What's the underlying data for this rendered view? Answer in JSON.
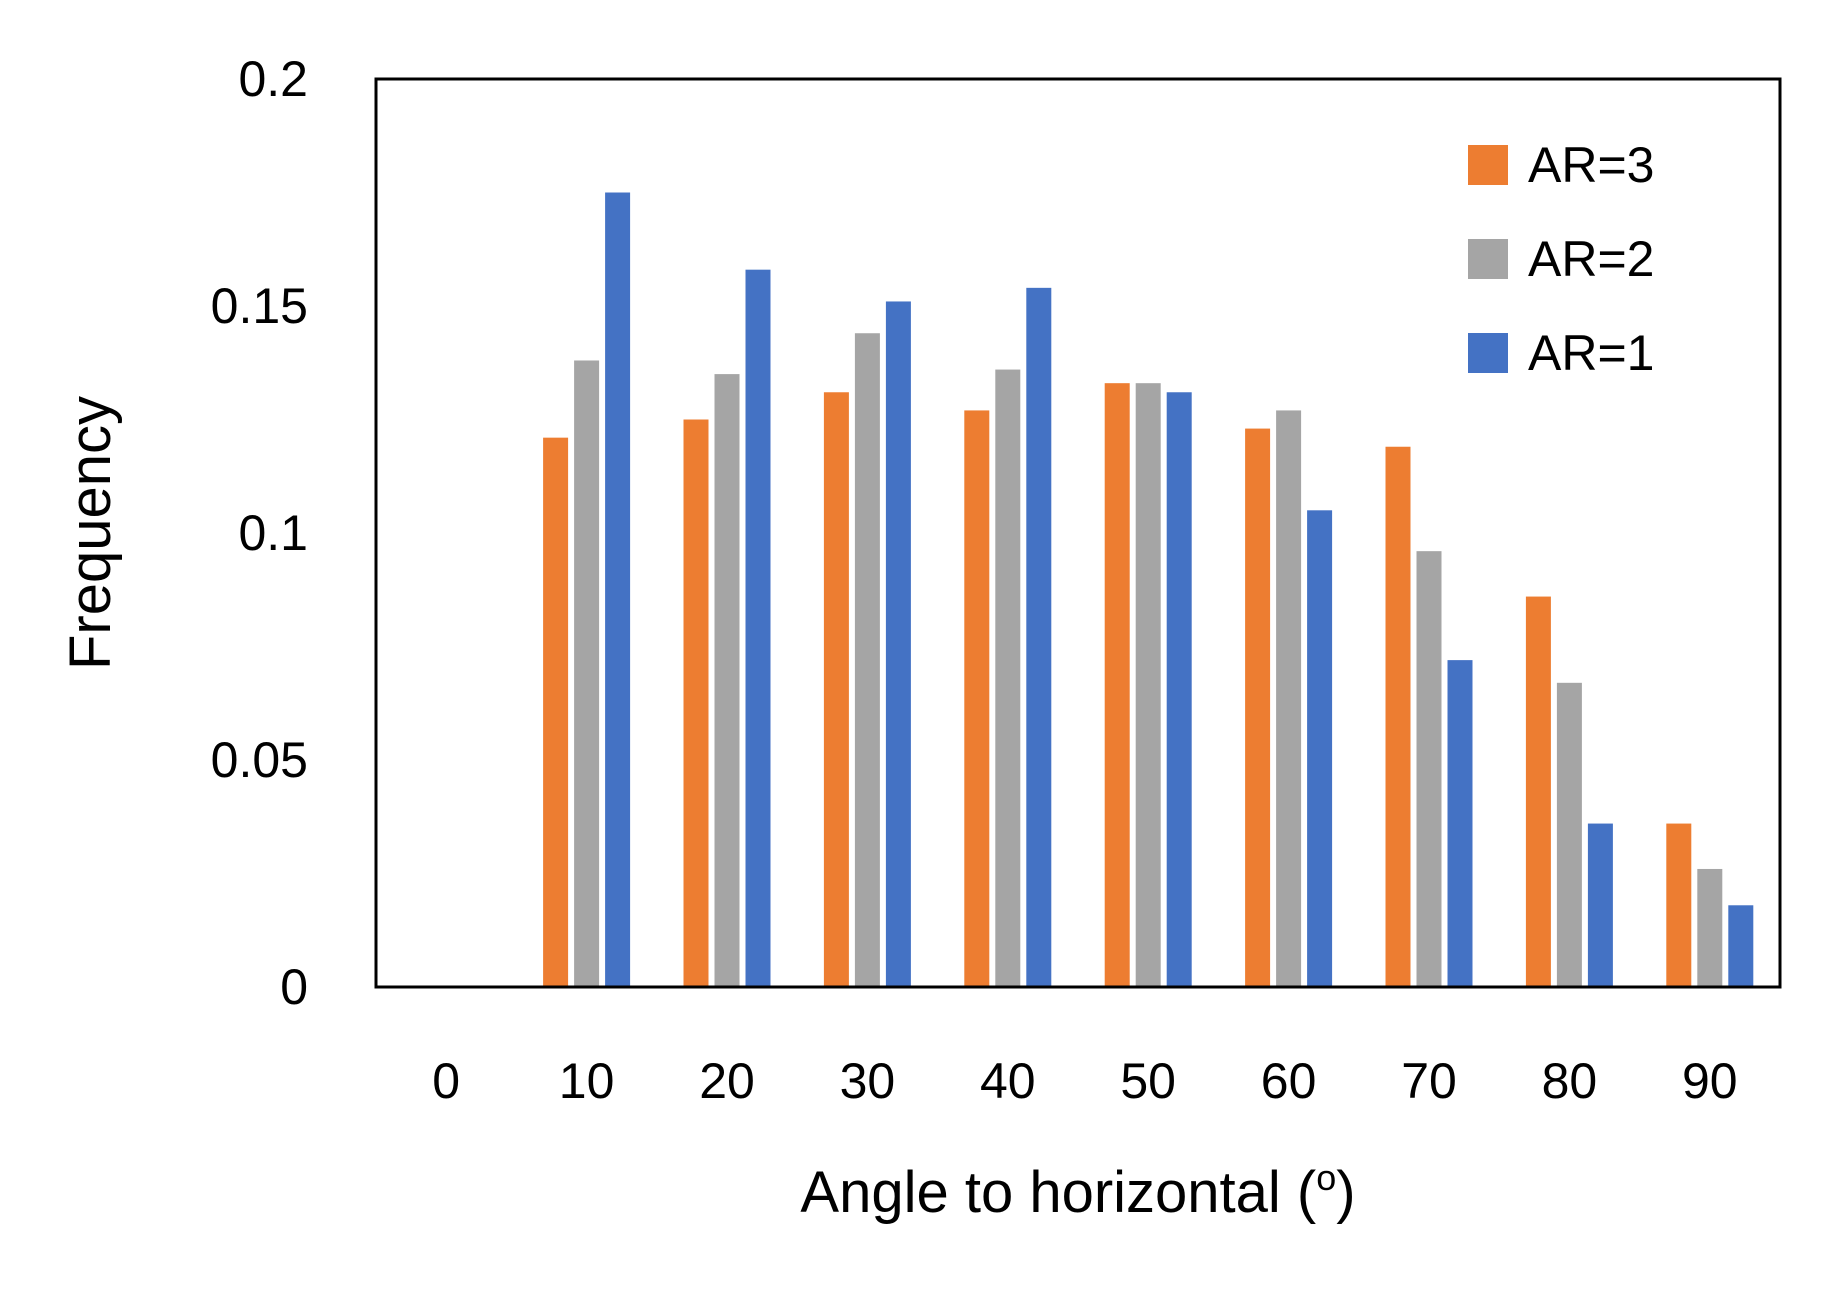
{
  "chart_data": {
    "type": "bar",
    "title": "",
    "xlabel": "Angle to horizontal (",
    "xlabel_superscript": "o",
    "xlabel_suffix": ")",
    "ylabel": "Frequency",
    "categories": [
      "0",
      "10",
      "20",
      "30",
      "40",
      "50",
      "60",
      "70",
      "80",
      "90"
    ],
    "ylim": [
      0,
      0.2
    ],
    "yticks": [
      "0",
      "0.05",
      "0.1",
      "0.15",
      "0.2"
    ],
    "grid": false,
    "legend_position": "top-right",
    "series": [
      {
        "name": "AR=3",
        "color": "#ED7D31",
        "values": [
          0,
          0.121,
          0.125,
          0.131,
          0.127,
          0.133,
          0.123,
          0.119,
          0.086,
          0.036
        ]
      },
      {
        "name": "AR=2",
        "color": "#A5A5A5",
        "values": [
          0,
          0.138,
          0.135,
          0.144,
          0.136,
          0.133,
          0.127,
          0.096,
          0.067,
          0.026
        ]
      },
      {
        "name": "AR=1",
        "color": "#4472C4",
        "values": [
          0,
          0.175,
          0.158,
          0.151,
          0.154,
          0.131,
          0.105,
          0.072,
          0.036,
          0.018
        ]
      }
    ]
  }
}
